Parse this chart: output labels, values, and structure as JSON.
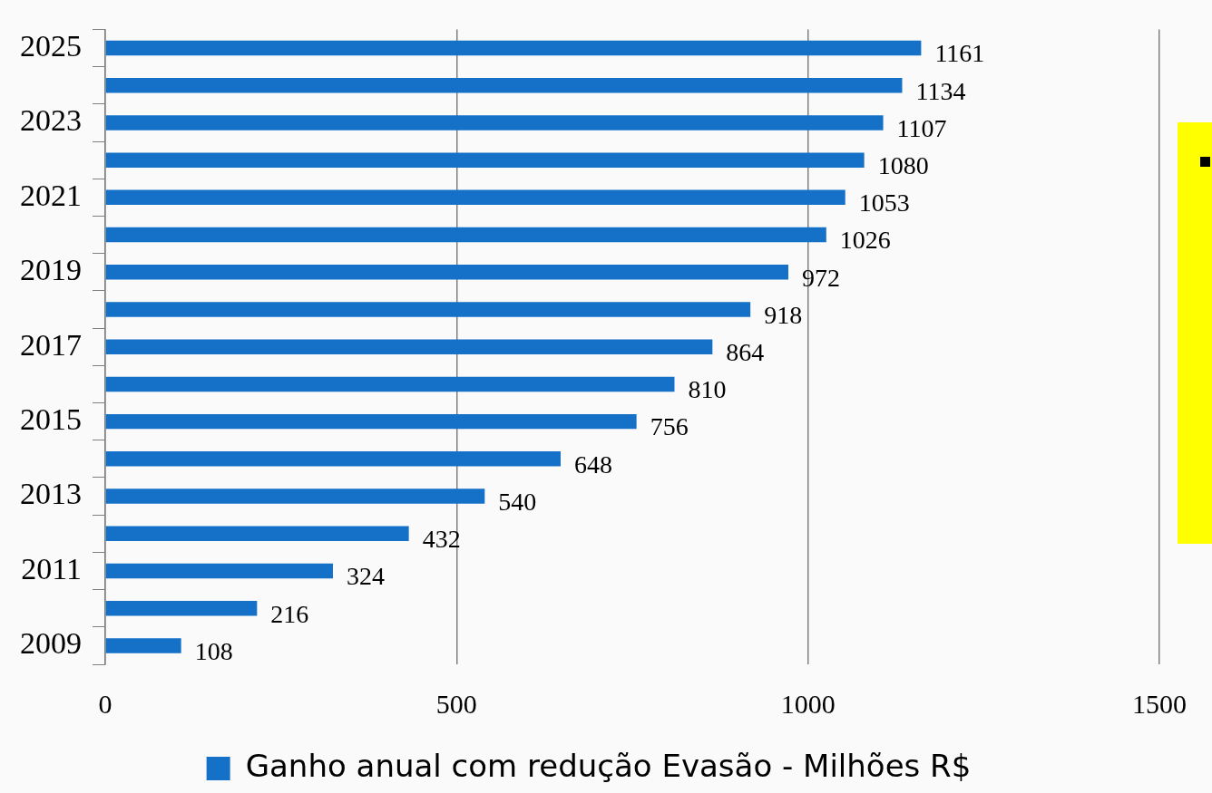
{
  "chart_data": {
    "type": "bar",
    "orientation": "horizontal",
    "categories": [
      "2025",
      null,
      "2023",
      null,
      "2021",
      null,
      "2019",
      null,
      "2017",
      null,
      "2015",
      null,
      "2013",
      null,
      "2011",
      null,
      "2009"
    ],
    "series": [
      {
        "name": "Ganho anual com redução Evasão - Milhões R$",
        "color": "#1570c8",
        "values": [
          1161,
          1134,
          1107,
          1080,
          1053,
          1026,
          972,
          918,
          864,
          810,
          756,
          648,
          540,
          432,
          324,
          216,
          108
        ]
      }
    ],
    "xlim": [
      0,
      1500
    ],
    "xticks": [
      0,
      500,
      1000,
      1500
    ],
    "grid": "x",
    "legend": "bottom",
    "data_labels": true
  }
}
